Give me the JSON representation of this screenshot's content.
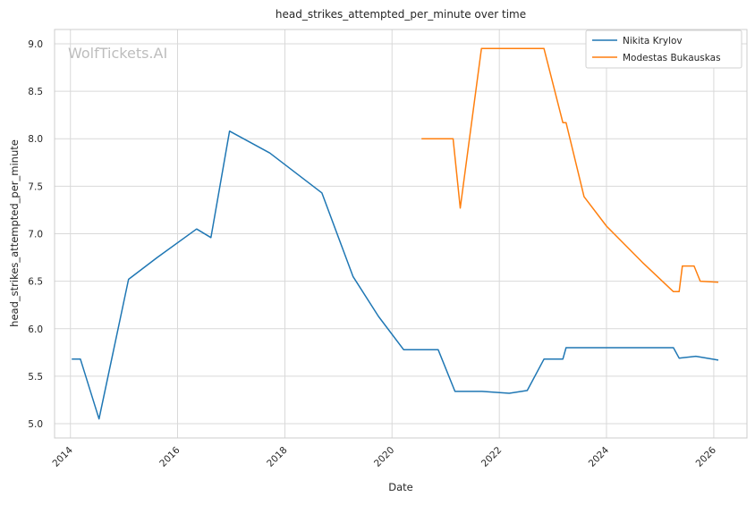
{
  "chart_data": {
    "type": "line",
    "title": "head_strikes_attempted_per_minute over time",
    "xlabel": "Date",
    "ylabel": "head_strikes_attempted_per_minute",
    "xlim": [
      "2013-09-15",
      "2026-08-15"
    ],
    "ylim": [
      4.85,
      9.15
    ],
    "x_ticks": [
      "2014",
      "2016",
      "2018",
      "2020",
      "2022",
      "2024",
      "2026"
    ],
    "y_ticks": [
      "5.0",
      "5.5",
      "6.0",
      "6.5",
      "7.0",
      "7.5",
      "8.0",
      "8.5",
      "9.0"
    ],
    "grid": true,
    "legend_position": "top-right",
    "watermark": "WolfTickets.AI",
    "series": [
      {
        "name": "Nikita Krylov",
        "color": "#1f77b4",
        "points": [
          [
            "2014-01-10",
            5.68
          ],
          [
            "2014-03-10",
            5.68
          ],
          [
            "2014-07-15",
            5.05
          ],
          [
            "2015-02-01",
            6.52
          ],
          [
            "2015-08-15",
            6.75
          ],
          [
            "2016-05-10",
            7.05
          ],
          [
            "2016-08-15",
            6.96
          ],
          [
            "2016-12-20",
            8.08
          ],
          [
            "2017-09-20",
            7.85
          ],
          [
            "2018-09-10",
            7.43
          ],
          [
            "2019-04-10",
            6.55
          ],
          [
            "2019-10-01",
            6.13
          ],
          [
            "2020-03-20",
            5.78
          ],
          [
            "2020-11-10",
            5.78
          ],
          [
            "2021-03-05",
            5.34
          ],
          [
            "2021-09-05",
            5.34
          ],
          [
            "2022-03-10",
            5.32
          ],
          [
            "2022-07-10",
            5.35
          ],
          [
            "2022-11-01",
            5.68
          ],
          [
            "2023-03-10",
            5.68
          ],
          [
            "2023-04-01",
            5.8
          ],
          [
            "2025-04-01",
            5.8
          ],
          [
            "2025-05-10",
            5.69
          ],
          [
            "2025-09-01",
            5.71
          ],
          [
            "2026-02-01",
            5.67
          ]
        ]
      },
      {
        "name": "Modestas Bukauskas",
        "color": "#ff7f0e",
        "points": [
          [
            "2020-07-20",
            8.0
          ],
          [
            "2021-02-20",
            8.0
          ],
          [
            "2021-04-10",
            7.27
          ],
          [
            "2021-09-01",
            8.95
          ],
          [
            "2022-11-01",
            8.95
          ],
          [
            "2023-03-10",
            8.17
          ],
          [
            "2023-04-01",
            8.17
          ],
          [
            "2023-08-01",
            7.39
          ],
          [
            "2024-01-01",
            7.08
          ],
          [
            "2024-09-01",
            6.7
          ],
          [
            "2025-04-01",
            6.39
          ],
          [
            "2025-05-10",
            6.39
          ],
          [
            "2025-06-01",
            6.66
          ],
          [
            "2025-08-20",
            6.66
          ],
          [
            "2025-10-01",
            6.5
          ],
          [
            "2026-02-01",
            6.49
          ]
        ]
      }
    ]
  }
}
